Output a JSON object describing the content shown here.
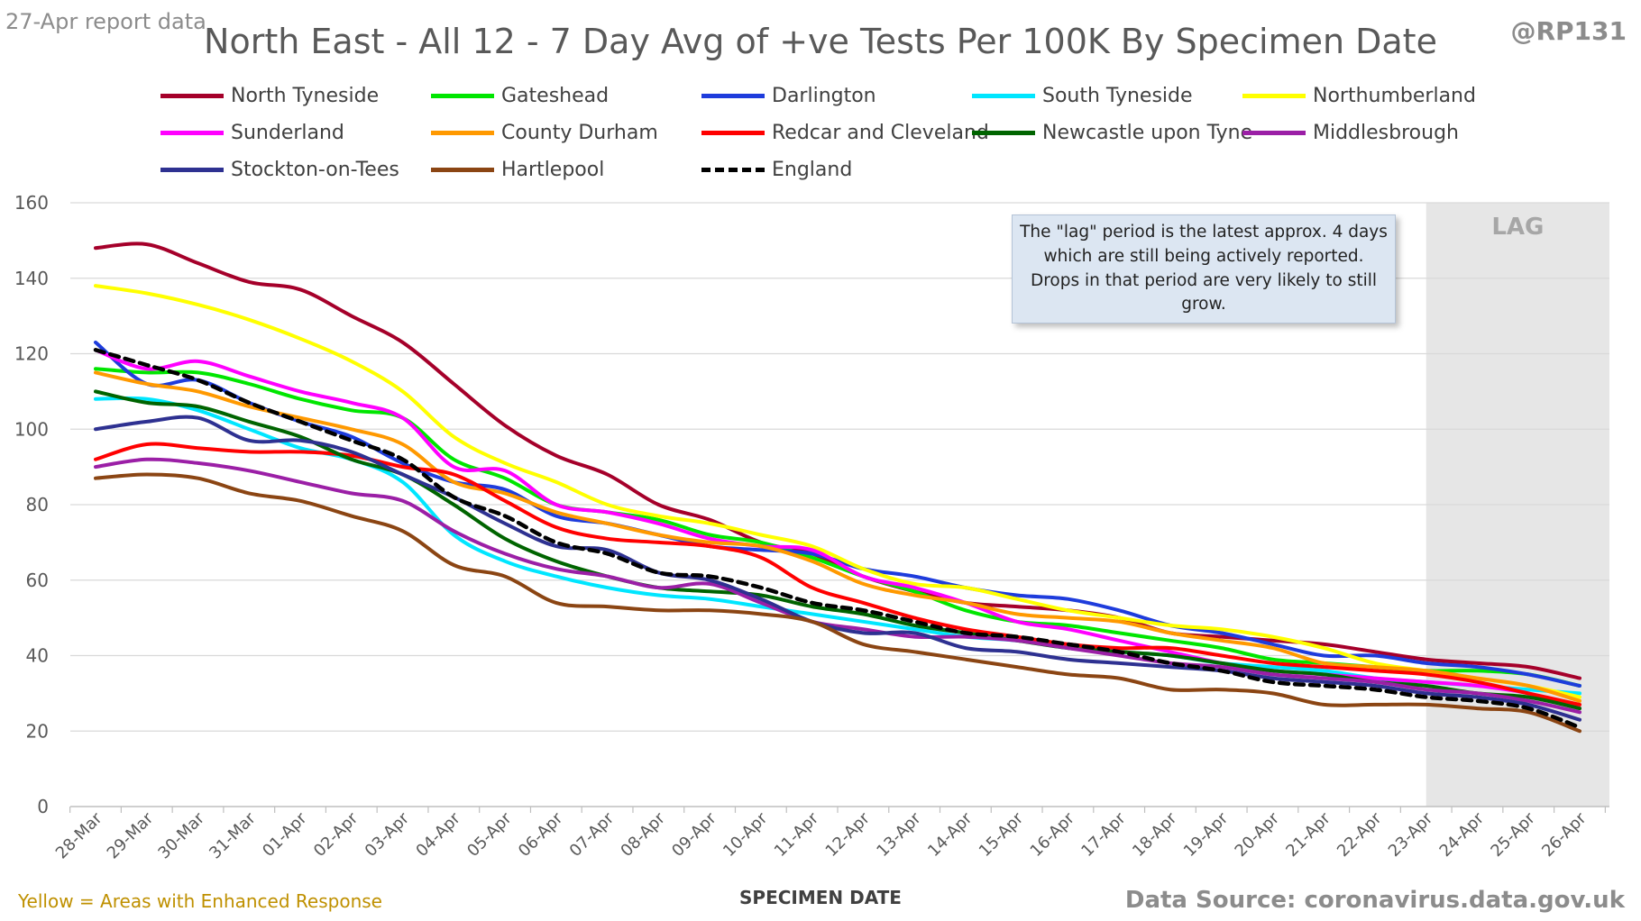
{
  "header": {
    "report_label": "27-Apr report data",
    "handle": "@RP131",
    "title": "North East - All 12 - 7 Day Avg of +ve Tests Per 100K By Specimen Date"
  },
  "annotation": {
    "lag_label": "LAG",
    "note": "The \"lag\" period is the latest approx. 4 days which are still being actively reported. Drops in that period are very likely to still grow."
  },
  "footer": {
    "left": "Yellow = Areas with Enhanced Response",
    "right": "Data Source: coronavirus.data.gov.uk"
  },
  "chart_data": {
    "type": "line",
    "title": "North East - All 12 - 7 Day Avg of +ve Tests Per 100K By Specimen Date",
    "xlabel": "SPECIMEN DATE",
    "ylabel": "",
    "ylim": [
      0,
      160
    ],
    "yticks": [
      0,
      20,
      40,
      60,
      80,
      100,
      120,
      140,
      160
    ],
    "grid": true,
    "legend_position": "top",
    "lag_period": {
      "from": "23-Apr",
      "to": "26-Apr"
    },
    "categories": [
      "28-Mar",
      "29-Mar",
      "30-Mar",
      "31-Mar",
      "01-Apr",
      "02-Apr",
      "03-Apr",
      "04-Apr",
      "05-Apr",
      "06-Apr",
      "07-Apr",
      "08-Apr",
      "09-Apr",
      "10-Apr",
      "11-Apr",
      "12-Apr",
      "13-Apr",
      "14-Apr",
      "15-Apr",
      "16-Apr",
      "17-Apr",
      "18-Apr",
      "19-Apr",
      "20-Apr",
      "21-Apr",
      "22-Apr",
      "23-Apr",
      "24-Apr",
      "25-Apr",
      "26-Apr"
    ],
    "series": [
      {
        "name": "North Tyneside",
        "color": "#a5002a",
        "dashed": false,
        "values": [
          148,
          149,
          144,
          139,
          137,
          130,
          123,
          112,
          101,
          93,
          88,
          80,
          76,
          70,
          67,
          61,
          57,
          54,
          53,
          52,
          50,
          46,
          45,
          44,
          43,
          41,
          39,
          38,
          37,
          34
        ]
      },
      {
        "name": "Gateshead",
        "color": "#00e600",
        "dashed": false,
        "values": [
          116,
          115,
          115,
          112,
          108,
          105,
          103,
          92,
          87,
          80,
          78,
          76,
          72,
          70,
          66,
          61,
          57,
          52,
          49,
          48,
          46,
          44,
          42,
          39,
          38,
          37,
          36,
          36,
          35,
          32
        ]
      },
      {
        "name": "Darlington",
        "color": "#1e3cdc",
        "dashed": false,
        "values": [
          123,
          112,
          113,
          107,
          102,
          98,
          91,
          86,
          84,
          77,
          75,
          72,
          69,
          68,
          67,
          63,
          61,
          58,
          56,
          55,
          52,
          48,
          46,
          43,
          40,
          40,
          38,
          37,
          35,
          32
        ]
      },
      {
        "name": "South Tyneside",
        "color": "#00e6ff",
        "dashed": false,
        "values": [
          108,
          108,
          105,
          100,
          95,
          92,
          86,
          72,
          65,
          61,
          58,
          56,
          55,
          53,
          51,
          49,
          47,
          45,
          44,
          42,
          41,
          40,
          38,
          37,
          36,
          34,
          33,
          32,
          31,
          30
        ]
      },
      {
        "name": "Northumberland",
        "color": "#ffff00",
        "dashed": false,
        "values": [
          138,
          136,
          133,
          129,
          124,
          118,
          110,
          98,
          91,
          86,
          80,
          77,
          75,
          72,
          69,
          63,
          59,
          58,
          55,
          52,
          50,
          48,
          47,
          45,
          42,
          38,
          36,
          34,
          32,
          29
        ]
      },
      {
        "name": "Sunderland",
        "color": "#ff00ff",
        "dashed": false,
        "values": [
          121,
          116,
          118,
          114,
          110,
          107,
          103,
          90,
          89,
          80,
          78,
          75,
          71,
          69,
          68,
          61,
          58,
          54,
          49,
          47,
          44,
          41,
          38,
          36,
          35,
          34,
          33,
          32,
          30,
          26
        ]
      },
      {
        "name": "County Durham",
        "color": "#ff9900",
        "dashed": false,
        "values": [
          115,
          112,
          110,
          106,
          103,
          100,
          96,
          86,
          83,
          78,
          75,
          72,
          70,
          69,
          65,
          59,
          56,
          54,
          51,
          50,
          49,
          46,
          44,
          42,
          38,
          37,
          36,
          34,
          32,
          28
        ]
      },
      {
        "name": "Redcar and Cleveland",
        "color": "#ff0000",
        "dashed": false,
        "values": [
          92,
          96,
          95,
          94,
          94,
          93,
          90,
          88,
          81,
          74,
          71,
          70,
          69,
          66,
          58,
          54,
          50,
          47,
          45,
          43,
          42,
          42,
          40,
          38,
          37,
          36,
          35,
          33,
          30,
          27
        ]
      },
      {
        "name": "Newcastle upon Tyne",
        "color": "#006400",
        "dashed": false,
        "values": [
          110,
          107,
          106,
          102,
          98,
          92,
          88,
          80,
          71,
          65,
          61,
          58,
          57,
          56,
          53,
          51,
          48,
          46,
          44,
          42,
          41,
          40,
          38,
          36,
          35,
          33,
          32,
          30,
          29,
          26
        ]
      },
      {
        "name": "Middlesbrough",
        "color": "#9b1fa6",
        "dashed": false,
        "values": [
          90,
          92,
          91,
          89,
          86,
          83,
          81,
          73,
          67,
          63,
          61,
          58,
          59,
          54,
          49,
          47,
          45,
          45,
          44,
          42,
          40,
          38,
          37,
          35,
          34,
          33,
          31,
          30,
          28,
          25
        ]
      },
      {
        "name": "Stockton-on-Tees",
        "color": "#2e3191",
        "dashed": false,
        "values": [
          100,
          102,
          103,
          97,
          97,
          94,
          88,
          82,
          75,
          69,
          68,
          62,
          60,
          55,
          49,
          46,
          46,
          42,
          41,
          39,
          38,
          37,
          36,
          34,
          33,
          32,
          30,
          29,
          27,
          23
        ]
      },
      {
        "name": "Hartlepool",
        "color": "#8b4513",
        "dashed": false,
        "values": [
          87,
          88,
          87,
          83,
          81,
          77,
          73,
          64,
          61,
          54,
          53,
          52,
          52,
          51,
          49,
          43,
          41,
          39,
          37,
          35,
          34,
          31,
          31,
          30,
          27,
          27,
          27,
          26,
          25,
          20
        ]
      },
      {
        "name": "England",
        "color": "#000000",
        "dashed": true,
        "values": [
          121,
          117,
          113,
          107,
          102,
          97,
          92,
          82,
          77,
          70,
          67,
          62,
          61,
          58,
          54,
          52,
          49,
          46,
          45,
          43,
          41,
          38,
          36,
          33,
          32,
          31,
          29,
          28,
          26,
          21
        ]
      }
    ]
  }
}
